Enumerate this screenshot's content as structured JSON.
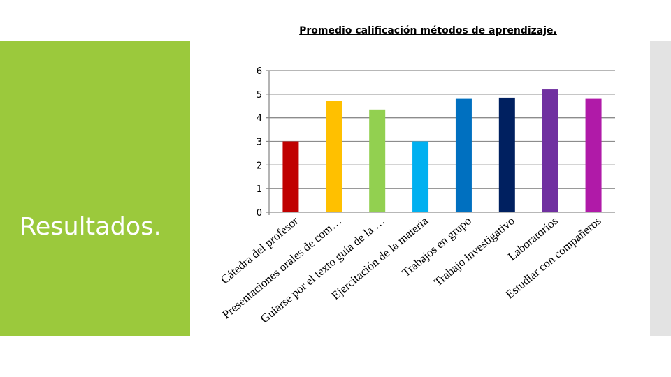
{
  "slide": {
    "heading": "Resultados."
  },
  "chart_data": {
    "type": "bar",
    "title": "Promedio calificación métodos de aprendizaje.",
    "categories": [
      "Cátedra del profesor",
      "Presentaciones orales de com…",
      "Guiarse por el texto guía de la …",
      "Ejercitación de la materia",
      "Trabajos en grupo",
      "Trabajo investigativo",
      "Laboratorios",
      "Estudiar con compañeros"
    ],
    "values": [
      3.0,
      4.7,
      4.35,
      3.0,
      4.8,
      4.85,
      5.2,
      4.8
    ],
    "colors": [
      "#c00000",
      "#ffc000",
      "#92d050",
      "#00b0f0",
      "#0070c0",
      "#002060",
      "#7030a0",
      "#b01aa8"
    ],
    "ylim": [
      0,
      6
    ],
    "yticks": [
      "0",
      "1",
      "2",
      "3",
      "4",
      "5",
      "6"
    ],
    "grid": true,
    "xlabel": "",
    "ylabel": ""
  }
}
